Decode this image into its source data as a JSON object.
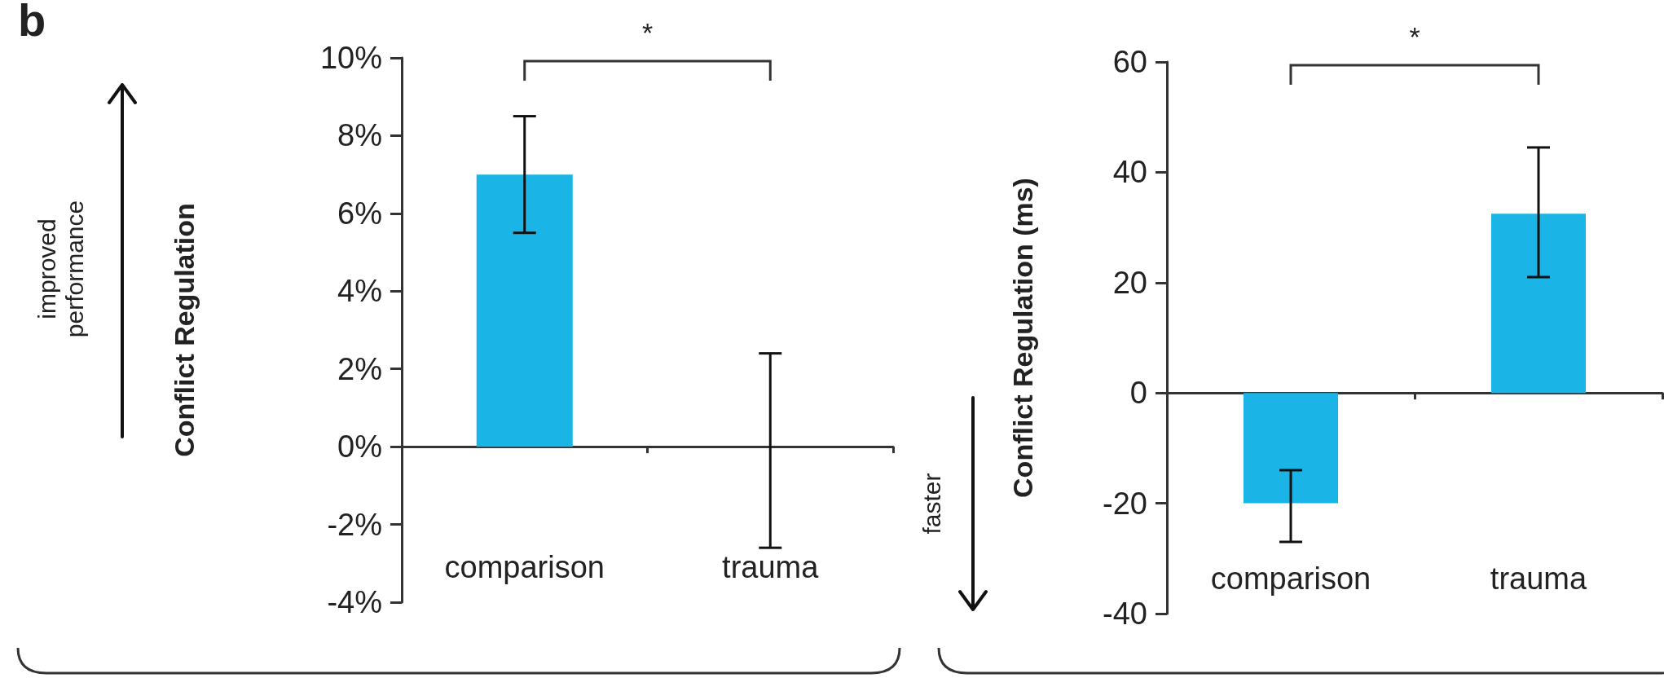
{
  "chart_data": [
    {
      "type": "bar",
      "ylabel": "Conflict Regulation",
      "categories": [
        "comparison",
        "trauma"
      ],
      "values": [
        7,
        0
      ],
      "color": "#1ab4e6",
      "errors": [
        [
          5.5,
          8.5
        ],
        [
          -2.6,
          2.4
        ]
      ],
      "ylim": [
        -4,
        10
      ],
      "yticks": [
        {
          "value": -4,
          "label": "-4%"
        },
        {
          "value": -2,
          "label": "-2%"
        },
        {
          "value": 0,
          "label": "0%"
        },
        {
          "value": 2,
          "label": "2%"
        },
        {
          "value": 4,
          "label": "4%"
        },
        {
          "value": 6,
          "label": "6%"
        },
        {
          "value": 8,
          "label": "8%"
        },
        {
          "value": 10,
          "label": "10%"
        }
      ],
      "annotations": [
        "b",
        "*",
        "improved performance"
      ]
    },
    {
      "type": "bar",
      "ylabel": "Conflict Regulation (ms)",
      "categories": [
        "comparison",
        "trauma"
      ],
      "values": [
        -20,
        32.5
      ],
      "color": "#1ab4e6",
      "errors": [
        [
          -27,
          -14
        ],
        [
          21,
          44.5
        ]
      ],
      "ylim": [
        -40,
        60
      ],
      "yticks": [
        -40,
        -20,
        0,
        20,
        40,
        60
      ],
      "annotations": [
        "*",
        "faster"
      ]
    }
  ]
}
